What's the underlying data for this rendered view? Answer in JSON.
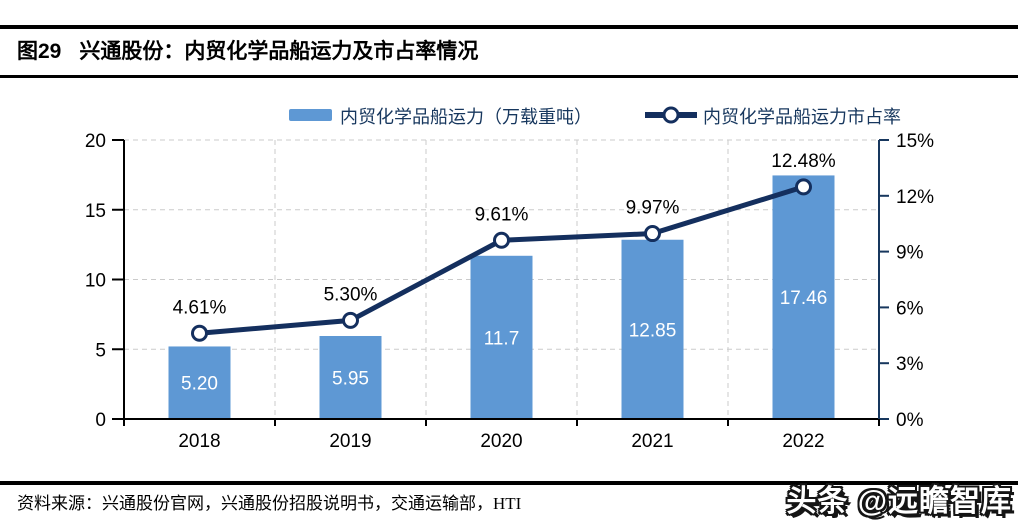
{
  "header": {
    "figure_label": "图29",
    "title": "兴通股份：内贸化学品船运力及市占率情况"
  },
  "footer": {
    "source": "资料来源：兴通股份官网，兴通股份招股说明书，交通运输部，HTI"
  },
  "watermark": {
    "text": "头条 @远瞻智库"
  },
  "colors": {
    "bar": "#5E98D4",
    "line": "#142F5E",
    "grid": "#cbcbcb",
    "axis_left": "#000000",
    "axis_right": "#17375E",
    "tick_label": "#000000",
    "legend_text": "#17375E",
    "bar_label": "#ffffff",
    "point_label": "#000000"
  },
  "chart_data": {
    "type": "bar",
    "title": "兴通股份：内贸化学品船运力及市占率情况",
    "categories": [
      "2018",
      "2019",
      "2020",
      "2021",
      "2022"
    ],
    "series": [
      {
        "name": "内贸化学品船运力（万载重吨）",
        "type": "bar",
        "axis": "left",
        "values": [
          5.2,
          5.95,
          11.7,
          12.85,
          17.46
        ],
        "labels": [
          "5.20",
          "5.95",
          "11.7",
          "12.85",
          "17.46"
        ]
      },
      {
        "name": "内贸化学品船运力市占率",
        "type": "line",
        "axis": "right",
        "values": [
          4.61,
          5.3,
          9.61,
          9.97,
          12.48
        ],
        "labels": [
          "4.61%",
          "5.30%",
          "9.61%",
          "9.97%",
          "12.48%"
        ]
      }
    ],
    "left_axis": {
      "min": 0,
      "max": 20,
      "tick_values": [
        0,
        5,
        10,
        15,
        20
      ],
      "tick_labels": [
        "0",
        "5",
        "10",
        "15",
        "20"
      ]
    },
    "right_axis": {
      "min": 0,
      "max": 15,
      "tick_values": [
        0,
        3,
        6,
        9,
        12,
        15
      ],
      "tick_labels": [
        "0%",
        "3%",
        "6%",
        "9%",
        "12%",
        "15%"
      ]
    },
    "grid": "dashed horizontal and vertical",
    "legend_position": "top"
  }
}
